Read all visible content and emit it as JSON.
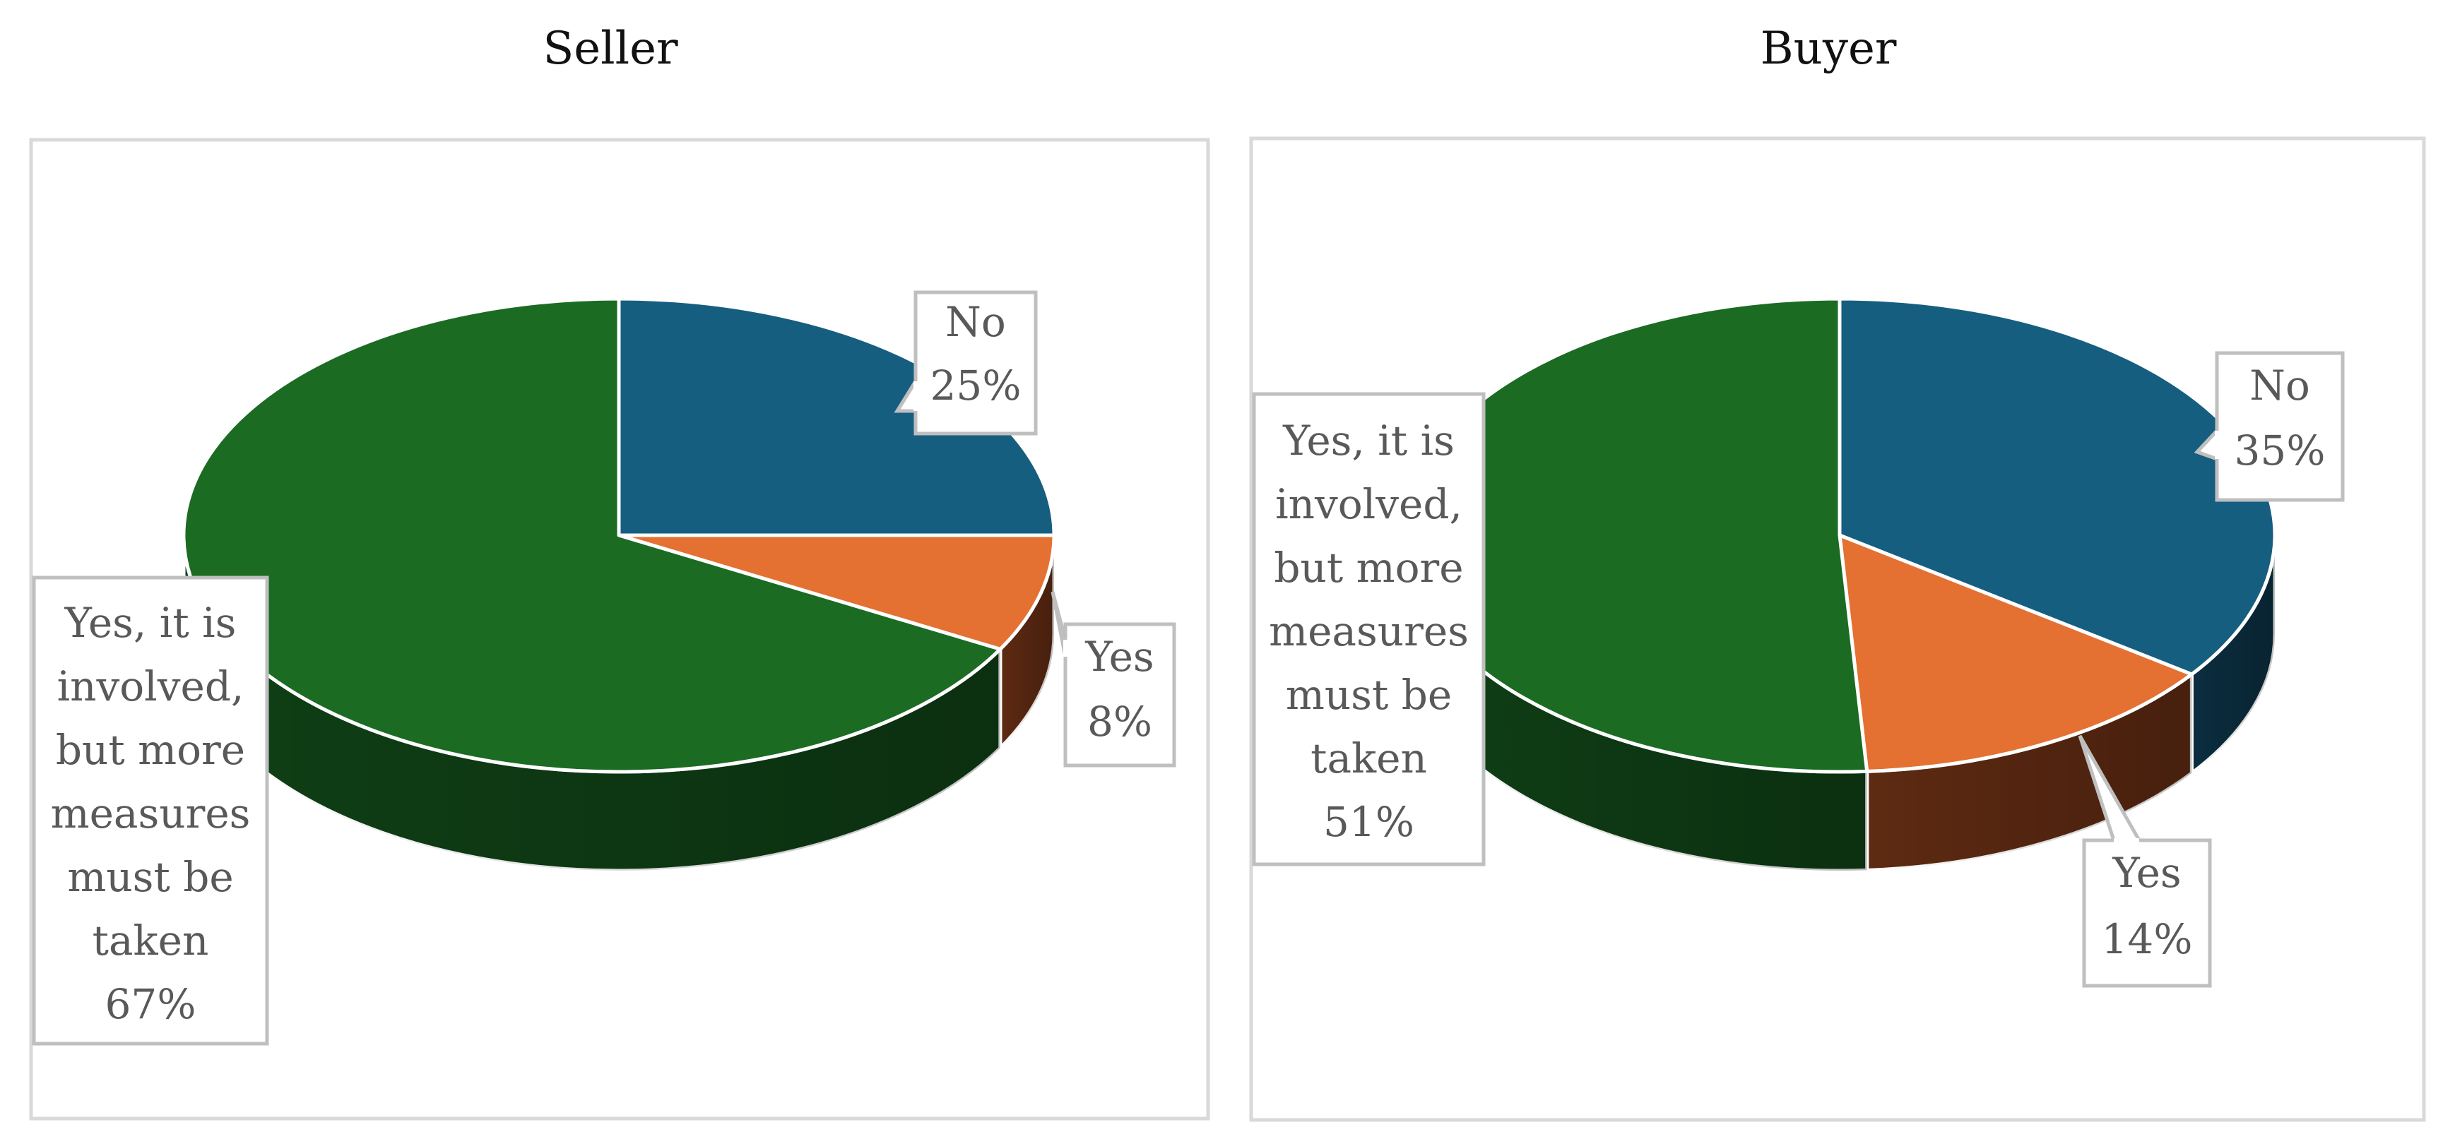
{
  "chart_data": [
    {
      "type": "pie",
      "title": "Seller",
      "slices": [
        {
          "label": "No",
          "value": 25,
          "value_label": "25%",
          "color": "#165E80",
          "side_color": "#0B2E40"
        },
        {
          "label": "Yes",
          "value": 8,
          "value_label": "8%",
          "color": "#E47032",
          "side_color": "#5E2A12"
        },
        {
          "label_lines": [
            "Yes, it is",
            "involved,",
            "but more",
            "measures",
            "must be",
            "taken"
          ],
          "value": 67,
          "value_label": "67%",
          "color": "#1B6B23",
          "side_color": "#0F3F15"
        }
      ]
    },
    {
      "type": "pie",
      "title": "Buyer",
      "slices": [
        {
          "label": "No",
          "value": 35,
          "value_label": "35%",
          "color": "#165E80",
          "side_color": "#0B2E40"
        },
        {
          "label": "Yes",
          "value": 14,
          "value_label": "14%",
          "color": "#E47032",
          "side_color": "#5E2A12"
        },
        {
          "label_lines": [
            "Yes, it is",
            "involved,",
            "but more",
            "measures",
            "must be",
            "taken"
          ],
          "value": 51,
          "value_label": "51%",
          "color": "#1B6B23",
          "side_color": "#0F3F15"
        }
      ]
    }
  ]
}
